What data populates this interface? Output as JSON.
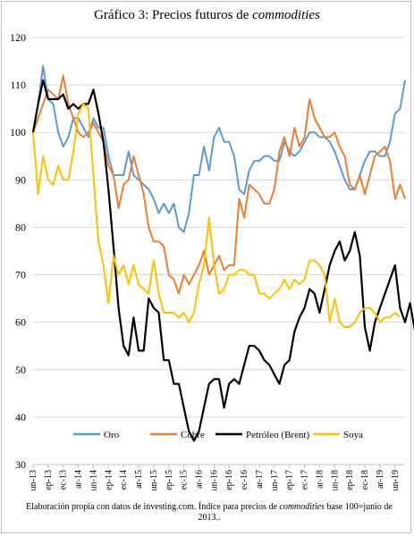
{
  "chart_data": {
    "type": "line",
    "title_prefix": "Gráfico 3: Precios futuros de ",
    "title_italic": "commodities",
    "xlabel": "",
    "ylabel": "",
    "ylim": [
      30,
      120
    ],
    "yticks": [
      30,
      40,
      50,
      60,
      70,
      80,
      90,
      100,
      110,
      120
    ],
    "x_start": "2013-06",
    "x_tick_labels": [
      "un-13",
      "ep-13",
      "ec-13",
      "ar-14",
      "un-14",
      "ep-14",
      "ec-14",
      "ar-15",
      "un-15",
      "ep-15",
      "ec-15",
      "ar-16",
      "un-16",
      "ep-16",
      "ec-16",
      "ar-17",
      "un-17",
      "ep-17",
      "ec-17",
      "ar-18",
      "un-18",
      "ep-18",
      "ec-18",
      "ar-19",
      "un-19"
    ],
    "grid": "horizontal",
    "legend_position": "bottom",
    "series": [
      {
        "name": "Oro",
        "color": "#5b9bd5",
        "values": [
          100,
          106,
          114,
          107,
          106,
          100,
          97,
          99,
          103,
          103,
          101,
          99,
          103,
          101,
          101,
          95,
          91,
          91,
          91,
          96,
          91,
          90,
          89,
          88,
          86,
          83,
          85,
          83,
          85,
          80,
          79,
          83,
          91,
          91,
          97,
          92,
          99,
          101,
          98,
          98,
          95,
          88,
          87,
          92,
          94,
          94,
          95,
          95,
          94,
          94,
          98,
          96,
          95,
          96,
          98,
          100,
          100,
          99,
          99,
          98,
          96,
          93,
          90,
          88,
          88,
          91,
          94,
          96,
          96,
          95,
          95,
          98,
          104,
          105,
          111
        ]
      },
      {
        "name": "Cobre",
        "color": "#ed7d31",
        "values": [
          100,
          103,
          106,
          109,
          108,
          107,
          112,
          106,
          103,
          100,
          99,
          100,
          102,
          100,
          98,
          93,
          91,
          84,
          89,
          90,
          95,
          91,
          87,
          80,
          77,
          77,
          76,
          70,
          69,
          66,
          70,
          68,
          70,
          72,
          75,
          70,
          72,
          74,
          71,
          72,
          72,
          86,
          82,
          89,
          88,
          87,
          85,
          85,
          88,
          96,
          99,
          95,
          101,
          97,
          99,
          107,
          103,
          101,
          99,
          99,
          100,
          97,
          95,
          89,
          88,
          91,
          87,
          91,
          95,
          96,
          97,
          94,
          86,
          89,
          86
        ]
      },
      {
        "name": "Petróleo (Brent)",
        "color": "#000000",
        "values": [
          100,
          106,
          111,
          107,
          107,
          107,
          108,
          105,
          106,
          105,
          106,
          106,
          109,
          104,
          98,
          88,
          76,
          63,
          55,
          53,
          61,
          54,
          54,
          65,
          63,
          62,
          52,
          52,
          47,
          47,
          42,
          37,
          35,
          37,
          42,
          47,
          48,
          48,
          42,
          47,
          48,
          47,
          51,
          55,
          55,
          54,
          52,
          51,
          49,
          47,
          51,
          52,
          58,
          61,
          63,
          67,
          66,
          62,
          67,
          72,
          75,
          77,
          73,
          75,
          79,
          74,
          59,
          54,
          60,
          63,
          66,
          69,
          72,
          63,
          60,
          64,
          58
        ]
      },
      {
        "name": "Soya",
        "color": "#ffc000",
        "values": [
          100,
          87,
          95,
          90,
          89,
          93,
          90,
          90,
          96,
          104,
          106,
          105,
          91,
          77,
          72,
          64,
          74,
          70,
          72,
          68,
          72,
          68,
          67,
          66,
          73,
          66,
          62,
          62,
          62,
          61,
          62,
          60,
          62,
          68,
          72,
          82,
          72,
          66,
          67,
          70,
          70,
          71,
          71,
          70,
          70,
          66,
          66,
          65,
          66,
          67,
          69,
          67,
          69,
          68,
          69,
          73,
          73,
          72,
          70,
          60,
          65,
          60,
          59,
          59,
          60,
          62,
          63,
          63,
          62,
          60,
          61,
          61,
          62,
          61
        ]
      }
    ]
  },
  "note_text": "Elaboración propia con datos de investing.com. Índice para precios de ",
  "note_italic": "commodities",
  "note_text_end": " base 100=junio de 2013.."
}
